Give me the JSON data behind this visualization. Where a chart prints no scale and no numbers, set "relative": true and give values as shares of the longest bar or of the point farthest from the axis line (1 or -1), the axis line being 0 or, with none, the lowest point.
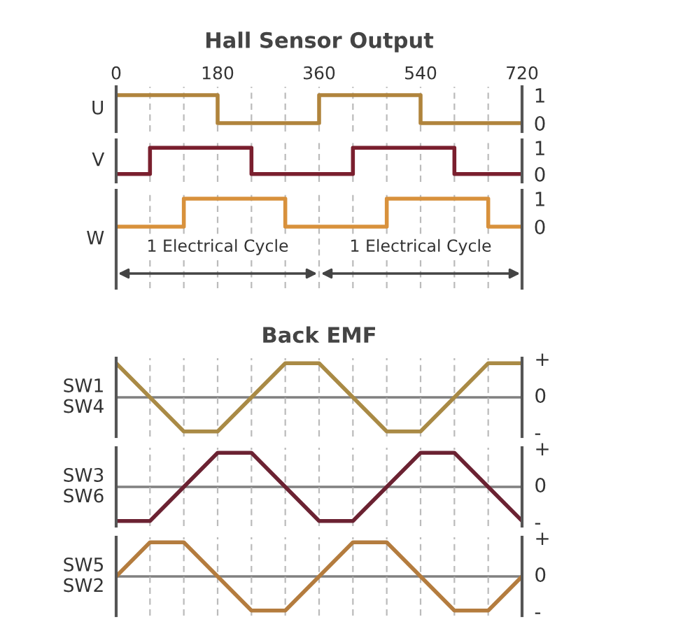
{
  "chart_data": [
    {
      "type": "step",
      "title": "Hall Sensor Output",
      "ylabel": "U",
      "x": [
        0,
        180,
        360,
        540,
        720
      ],
      "series": [
        {
          "color": "#b0843c",
          "values": [
            1,
            0,
            1,
            0,
            0
          ]
        }
      ],
      "xlim": [
        0,
        720
      ],
      "xticks": [
        0,
        {
          "value": 60,
          "label": null
        },
        {
          "value": 120,
          "label": null
        },
        180,
        {
          "value": 240,
          "label": null
        },
        {
          "value": 300,
          "label": null
        },
        360,
        {
          "value": 420,
          "label": null
        },
        {
          "value": 480,
          "label": null
        },
        540,
        {
          "value": 600,
          "label": null
        },
        {
          "value": 660,
          "label": null
        },
        720
      ],
      "ylim": [
        -0.3,
        1.3
      ],
      "yticks": [
        0,
        1
      ],
      "grid": "x"
    },
    {
      "type": "step",
      "ylabel": "V",
      "categories": [
        null,
        null,
        null,
        null,
        null,
        null,
        null,
        null,
        null,
        null,
        null,
        null,
        null
      ],
      "series": [
        {
          "color": "#7a1f2e",
          "values": [
            0,
            1,
            1,
            1,
            0,
            0,
            0,
            1,
            1,
            1,
            0,
            0,
            0
          ]
        }
      ],
      "ylim": [
        -0.3,
        1.3
      ],
      "yticks": [
        0,
        1
      ],
      "grid": "x",
      "tick_labels": "y"
    },
    {
      "type": "step",
      "ylabel": "W",
      "categories": [
        null,
        null,
        null,
        null,
        null,
        null,
        null,
        null,
        null,
        null,
        null,
        null,
        null
      ],
      "series": [
        {
          "color": "#d8913c",
          "values": [
            0,
            0,
            1,
            1,
            1,
            0,
            0,
            0,
            1,
            1,
            1,
            0,
            0
          ]
        }
      ],
      "ylim": [
        -2.2,
        1.3
      ],
      "yticks": [
        0,
        1
      ],
      "grid": "x",
      "tick_labels": "y",
      "annotations": [
        "1 Electrical Cycle",
        "1 Electrical Cycle"
      ]
    },
    {
      "type": "line",
      "title": "Back EMF",
      "ylabel": "SW1\nSW4",
      "categories": [
        null,
        null,
        null,
        null,
        null,
        null,
        null,
        null,
        null,
        null,
        null,
        null,
        null
      ],
      "series": [
        {
          "color": "#a98a45",
          "values": [
            1,
            0,
            -1,
            -1,
            0,
            1,
            1,
            0,
            -1,
            -1,
            0,
            1,
            1
          ]
        }
      ],
      "relative": true,
      "grid": "x",
      "tick_labels": false,
      "annotations": [
        "+",
        "-"
      ],
      "ref_lines": [
        {
          "axis": "y",
          "value": 0,
          "color": "#808080",
          "label": "0"
        }
      ]
    },
    {
      "type": "line",
      "ylabel": "SW3\nSW6",
      "categories": [
        null,
        null,
        null,
        null,
        null,
        null,
        null,
        null,
        null,
        null,
        null,
        null,
        null
      ],
      "series": [
        {
          "color": "#6b2232",
          "values": [
            -1,
            -1,
            0,
            1,
            1,
            0,
            -1,
            -1,
            0,
            1,
            1,
            0,
            -1
          ]
        }
      ],
      "relative": true,
      "grid": "x",
      "tick_labels": false,
      "annotations": [
        "+",
        "-"
      ],
      "ref_lines": [
        {
          "axis": "y",
          "value": 0,
          "color": "#808080",
          "label": "0"
        }
      ]
    },
    {
      "type": "line",
      "ylabel": "SW5\nSW2",
      "categories": [
        null,
        null,
        null,
        null,
        null,
        null,
        null,
        null,
        null,
        null,
        null,
        null,
        null
      ],
      "series": [
        {
          "color": "#b47c3e",
          "values": [
            0,
            1,
            1,
            0,
            -1,
            -1,
            0,
            1,
            1,
            0,
            -1,
            -1,
            0
          ]
        }
      ],
      "relative": true,
      "grid": "x",
      "tick_labels": false,
      "annotations": [
        "+",
        "-"
      ],
      "ref_lines": [
        {
          "axis": "y",
          "value": 0,
          "color": "#808080",
          "label": "0"
        }
      ]
    }
  ]
}
